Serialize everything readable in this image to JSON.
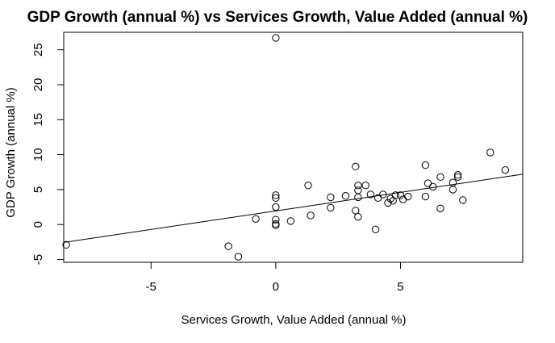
{
  "chart_data": {
    "type": "scatter",
    "title": "GDP Growth (annual %) vs Services Growth, Value Added (annual %)",
    "xlabel": "Services Growth, Value Added (annual %)",
    "ylabel": "GDP Growth (annual %)",
    "xlim": [
      -8.5,
      9.9
    ],
    "ylim": [
      -5.4,
      27.5
    ],
    "xticks": [
      -5,
      0,
      5
    ],
    "yticks": [
      -5,
      0,
      5,
      10,
      15,
      20,
      25
    ],
    "xtick_labels": [
      "-5",
      "0",
      "5"
    ],
    "ytick_labels": [
      "-5",
      "0",
      "5",
      "10",
      "15",
      "20",
      "25"
    ],
    "points": [
      {
        "x": -8.4,
        "y": -2.9
      },
      {
        "x": -1.9,
        "y": -3.1
      },
      {
        "x": -1.5,
        "y": -4.6
      },
      {
        "x": -0.8,
        "y": 0.8
      },
      {
        "x": 0.0,
        "y": 26.7
      },
      {
        "x": 0.0,
        "y": 4.2
      },
      {
        "x": 0.0,
        "y": 3.8
      },
      {
        "x": 0.0,
        "y": 2.5
      },
      {
        "x": 0.0,
        "y": 0.7
      },
      {
        "x": 0.0,
        "y": 0.1
      },
      {
        "x": 0.0,
        "y": -0.1
      },
      {
        "x": 0.6,
        "y": 0.5
      },
      {
        "x": 1.3,
        "y": 5.6
      },
      {
        "x": 1.4,
        "y": 1.3
      },
      {
        "x": 2.2,
        "y": 2.4
      },
      {
        "x": 2.2,
        "y": 3.9
      },
      {
        "x": 2.8,
        "y": 4.1
      },
      {
        "x": 3.2,
        "y": 8.3
      },
      {
        "x": 3.2,
        "y": 2.0
      },
      {
        "x": 3.3,
        "y": 1.1
      },
      {
        "x": 3.3,
        "y": 3.9
      },
      {
        "x": 3.3,
        "y": 4.9
      },
      {
        "x": 3.3,
        "y": 5.6
      },
      {
        "x": 3.6,
        "y": 5.6
      },
      {
        "x": 3.8,
        "y": 4.3
      },
      {
        "x": 4.0,
        "y": -0.7
      },
      {
        "x": 4.1,
        "y": 3.8
      },
      {
        "x": 4.3,
        "y": 4.3
      },
      {
        "x": 4.5,
        "y": 3.1
      },
      {
        "x": 4.6,
        "y": 3.7
      },
      {
        "x": 4.7,
        "y": 3.4
      },
      {
        "x": 4.8,
        "y": 4.2
      },
      {
        "x": 5.0,
        "y": 4.2
      },
      {
        "x": 5.1,
        "y": 3.6
      },
      {
        "x": 5.3,
        "y": 4.0
      },
      {
        "x": 6.0,
        "y": 8.5
      },
      {
        "x": 6.0,
        "y": 4.0
      },
      {
        "x": 6.1,
        "y": 5.9
      },
      {
        "x": 6.3,
        "y": 5.4
      },
      {
        "x": 6.6,
        "y": 6.8
      },
      {
        "x": 6.6,
        "y": 2.3
      },
      {
        "x": 7.1,
        "y": 5.0
      },
      {
        "x": 7.1,
        "y": 6.0
      },
      {
        "x": 7.3,
        "y": 6.8
      },
      {
        "x": 7.3,
        "y": 7.1
      },
      {
        "x": 7.5,
        "y": 3.5
      },
      {
        "x": 8.6,
        "y": 10.3
      },
      {
        "x": 9.2,
        "y": 7.8
      }
    ],
    "regression_line": {
      "intercept": 1.95,
      "slope": 0.53
    }
  }
}
